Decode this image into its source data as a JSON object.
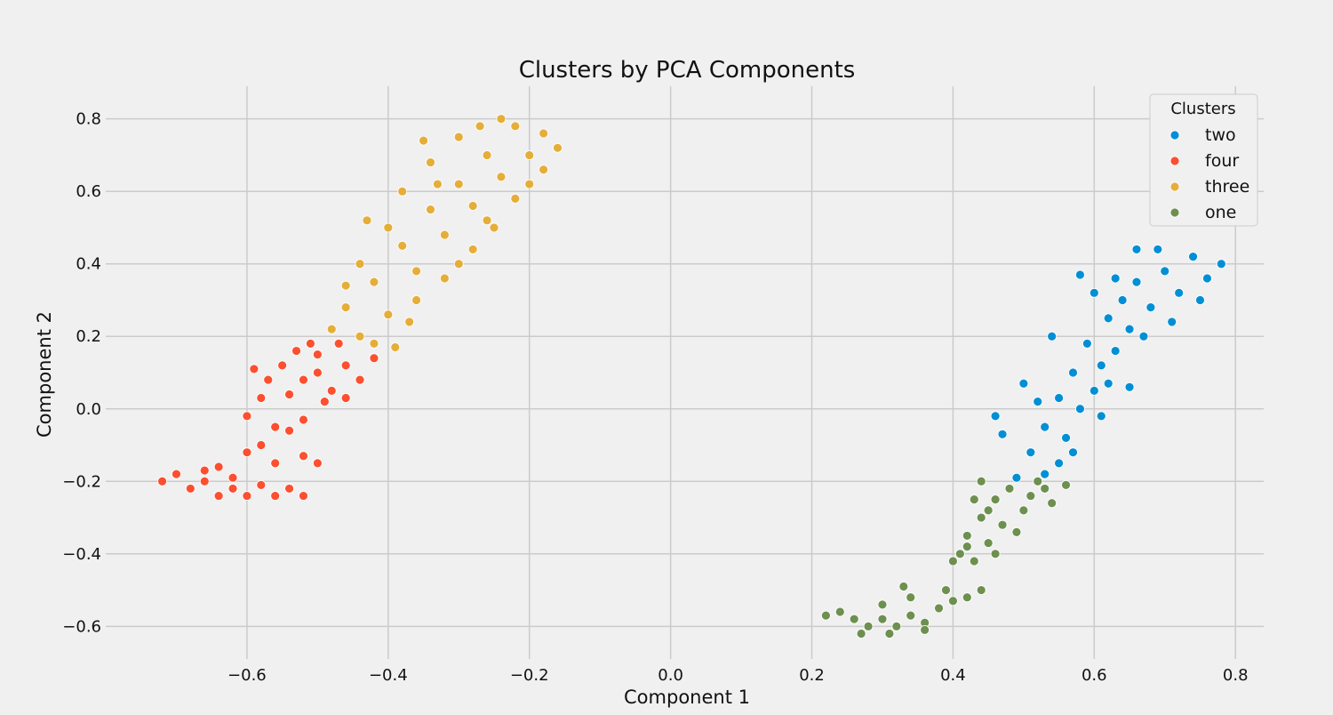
{
  "chart_data": {
    "type": "scatter",
    "title": "Clusters by PCA Components",
    "xlabel": "Component 1",
    "ylabel": "Component 2",
    "xlim": [
      -0.8,
      0.84
    ],
    "ylim": [
      -0.69,
      0.89
    ],
    "x_ticks": [
      -0.6,
      -0.4,
      -0.2,
      0.0,
      0.2,
      0.4,
      0.6,
      0.8
    ],
    "x_tick_labels": [
      "−0.6",
      "−0.4",
      "−0.2",
      "0.0",
      "0.2",
      "0.4",
      "0.6",
      "0.8"
    ],
    "y_ticks": [
      -0.6,
      -0.4,
      -0.2,
      0.0,
      0.2,
      0.4,
      0.6,
      0.8
    ],
    "y_tick_labels": [
      "−0.6",
      "−0.4",
      "−0.2",
      "0.0",
      "0.2",
      "0.4",
      "0.6",
      "0.8"
    ],
    "grid": true,
    "legend": {
      "title": "Clusters",
      "placement": "top-right",
      "entries": [
        "two",
        "four",
        "three",
        "one"
      ]
    },
    "colors": {
      "two": "#008fd5",
      "four": "#fc4f30",
      "three": "#e5ae38",
      "one": "#6d904f"
    },
    "series": [
      {
        "name": "two",
        "points": [
          [
            0.49,
            -0.19
          ],
          [
            0.51,
            -0.12
          ],
          [
            0.53,
            -0.05
          ],
          [
            0.52,
            0.02
          ],
          [
            0.55,
            0.03
          ],
          [
            0.56,
            -0.08
          ],
          [
            0.57,
            0.1
          ],
          [
            0.58,
            0.0
          ],
          [
            0.6,
            0.05
          ],
          [
            0.59,
            0.18
          ],
          [
            0.61,
            0.12
          ],
          [
            0.62,
            0.25
          ],
          [
            0.63,
            0.16
          ],
          [
            0.64,
            0.3
          ],
          [
            0.65,
            0.22
          ],
          [
            0.66,
            0.35
          ],
          [
            0.68,
            0.28
          ],
          [
            0.7,
            0.38
          ],
          [
            0.72,
            0.32
          ],
          [
            0.74,
            0.42
          ],
          [
            0.76,
            0.36
          ],
          [
            0.78,
            0.4
          ],
          [
            0.66,
            0.44
          ],
          [
            0.69,
            0.44
          ],
          [
            0.55,
            -0.15
          ],
          [
            0.47,
            -0.07
          ],
          [
            0.46,
            -0.02
          ],
          [
            0.5,
            0.07
          ],
          [
            0.54,
            0.2
          ],
          [
            0.6,
            0.32
          ],
          [
            0.58,
            0.37
          ],
          [
            0.63,
            0.36
          ],
          [
            0.67,
            0.2
          ],
          [
            0.71,
            0.24
          ],
          [
            0.65,
            0.06
          ],
          [
            0.61,
            -0.02
          ],
          [
            0.57,
            -0.12
          ],
          [
            0.53,
            -0.18
          ],
          [
            0.75,
            0.3
          ],
          [
            0.62,
            0.07
          ]
        ]
      },
      {
        "name": "four",
        "points": [
          [
            -0.72,
            -0.2
          ],
          [
            -0.7,
            -0.18
          ],
          [
            -0.68,
            -0.22
          ],
          [
            -0.66,
            -0.2
          ],
          [
            -0.64,
            -0.24
          ],
          [
            -0.62,
            -0.22
          ],
          [
            -0.6,
            -0.24
          ],
          [
            -0.58,
            -0.21
          ],
          [
            -0.56,
            -0.24
          ],
          [
            -0.54,
            -0.22
          ],
          [
            -0.52,
            -0.24
          ],
          [
            -0.64,
            -0.16
          ],
          [
            -0.6,
            -0.12
          ],
          [
            -0.56,
            -0.15
          ],
          [
            -0.52,
            -0.13
          ],
          [
            -0.5,
            -0.15
          ],
          [
            -0.58,
            -0.1
          ],
          [
            -0.62,
            -0.19
          ],
          [
            -0.66,
            -0.17
          ],
          [
            -0.6,
            -0.02
          ],
          [
            -0.58,
            0.03
          ],
          [
            -0.56,
            -0.05
          ],
          [
            -0.54,
            0.04
          ],
          [
            -0.52,
            -0.03
          ],
          [
            -0.55,
            0.12
          ],
          [
            -0.52,
            0.08
          ],
          [
            -0.5,
            0.15
          ],
          [
            -0.48,
            0.05
          ],
          [
            -0.46,
            0.12
          ],
          [
            -0.44,
            0.08
          ],
          [
            -0.42,
            0.14
          ],
          [
            -0.47,
            0.18
          ],
          [
            -0.51,
            0.18
          ],
          [
            -0.53,
            0.16
          ],
          [
            -0.57,
            0.08
          ],
          [
            -0.49,
            0.02
          ],
          [
            -0.46,
            0.03
          ],
          [
            -0.59,
            0.11
          ],
          [
            -0.54,
            -0.06
          ],
          [
            -0.5,
            0.1
          ]
        ]
      },
      {
        "name": "three",
        "points": [
          [
            -0.48,
            0.22
          ],
          [
            -0.46,
            0.28
          ],
          [
            -0.44,
            0.2
          ],
          [
            -0.42,
            0.35
          ],
          [
            -0.4,
            0.26
          ],
          [
            -0.38,
            0.45
          ],
          [
            -0.36,
            0.38
          ],
          [
            -0.34,
            0.55
          ],
          [
            -0.32,
            0.48
          ],
          [
            -0.3,
            0.62
          ],
          [
            -0.28,
            0.56
          ],
          [
            -0.26,
            0.7
          ],
          [
            -0.24,
            0.64
          ],
          [
            -0.22,
            0.78
          ],
          [
            -0.2,
            0.7
          ],
          [
            -0.18,
            0.76
          ],
          [
            -0.16,
            0.72
          ],
          [
            -0.24,
            0.8
          ],
          [
            -0.3,
            0.75
          ],
          [
            -0.34,
            0.68
          ],
          [
            -0.38,
            0.6
          ],
          [
            -0.4,
            0.5
          ],
          [
            -0.44,
            0.4
          ],
          [
            -0.46,
            0.34
          ],
          [
            -0.42,
            0.18
          ],
          [
            -0.36,
            0.3
          ],
          [
            -0.32,
            0.36
          ],
          [
            -0.28,
            0.44
          ],
          [
            -0.26,
            0.52
          ],
          [
            -0.22,
            0.58
          ],
          [
            -0.2,
            0.62
          ],
          [
            -0.35,
            0.74
          ],
          [
            -0.27,
            0.78
          ],
          [
            -0.3,
            0.4
          ],
          [
            -0.33,
            0.62
          ],
          [
            -0.39,
            0.17
          ],
          [
            -0.25,
            0.5
          ],
          [
            -0.18,
            0.66
          ],
          [
            -0.43,
            0.52
          ],
          [
            -0.37,
            0.24
          ]
        ]
      },
      {
        "name": "one",
        "points": [
          [
            0.22,
            -0.57
          ],
          [
            0.24,
            -0.56
          ],
          [
            0.26,
            -0.58
          ],
          [
            0.28,
            -0.6
          ],
          [
            0.3,
            -0.58
          ],
          [
            0.32,
            -0.6
          ],
          [
            0.34,
            -0.57
          ],
          [
            0.36,
            -0.59
          ],
          [
            0.38,
            -0.55
          ],
          [
            0.4,
            -0.53
          ],
          [
            0.42,
            -0.52
          ],
          [
            0.44,
            -0.5
          ],
          [
            0.34,
            -0.52
          ],
          [
            0.3,
            -0.54
          ],
          [
            0.27,
            -0.62
          ],
          [
            0.31,
            -0.62
          ],
          [
            0.36,
            -0.61
          ],
          [
            0.39,
            -0.5
          ],
          [
            0.33,
            -0.49
          ],
          [
            0.41,
            -0.4
          ],
          [
            0.42,
            -0.35
          ],
          [
            0.43,
            -0.42
          ],
          [
            0.44,
            -0.3
          ],
          [
            0.45,
            -0.37
          ],
          [
            0.46,
            -0.25
          ],
          [
            0.47,
            -0.32
          ],
          [
            0.48,
            -0.22
          ],
          [
            0.5,
            -0.28
          ],
          [
            0.52,
            -0.2
          ],
          [
            0.54,
            -0.26
          ],
          [
            0.56,
            -0.21
          ],
          [
            0.44,
            -0.2
          ],
          [
            0.43,
            -0.25
          ],
          [
            0.46,
            -0.4
          ],
          [
            0.49,
            -0.34
          ],
          [
            0.51,
            -0.24
          ],
          [
            0.45,
            -0.28
          ],
          [
            0.42,
            -0.38
          ],
          [
            0.4,
            -0.42
          ],
          [
            0.53,
            -0.22
          ]
        ]
      }
    ]
  }
}
